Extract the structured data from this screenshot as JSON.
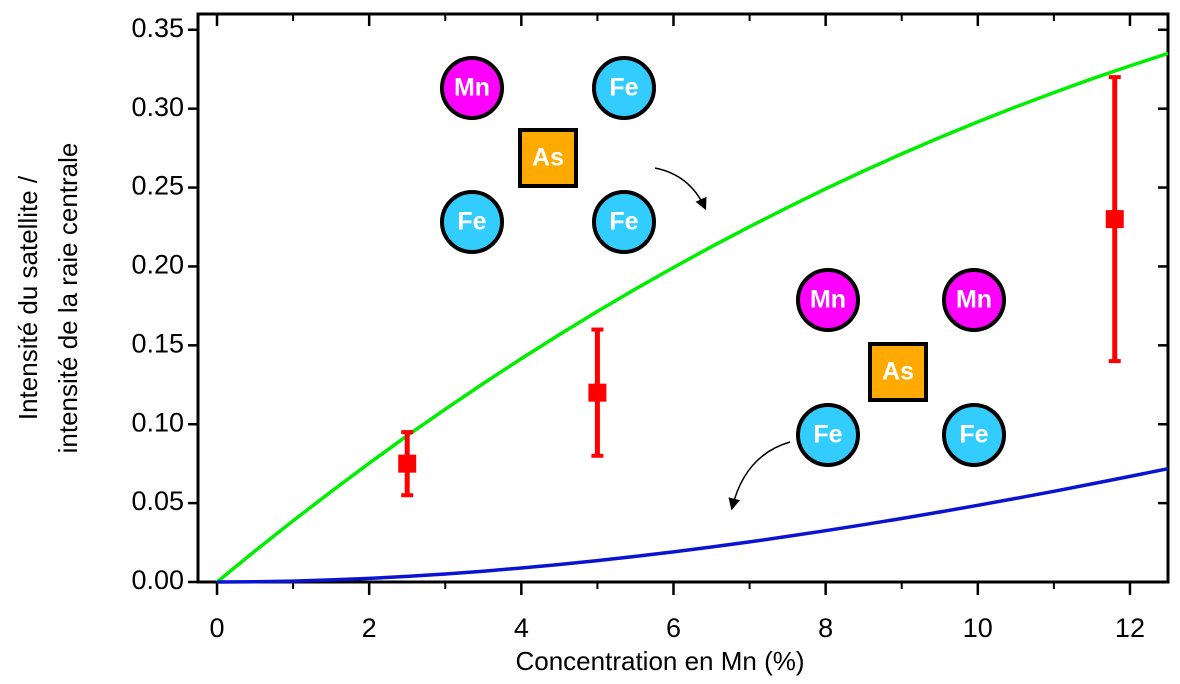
{
  "chart_data": {
    "type": "line",
    "xlabel": "Concentration en Mn (%)",
    "ylabel": [
      "Intensité du satellite /",
      "intensité de la raie centrale"
    ],
    "xlim": [
      -0.25,
      12.5
    ],
    "ylim": [
      0,
      0.36
    ],
    "xticks": [
      0,
      2,
      4,
      6,
      8,
      10,
      12
    ],
    "xminor_ticks": [
      1,
      3,
      5,
      7,
      9,
      11
    ],
    "yticks": [
      {
        "value": 0,
        "label": "0.00"
      },
      0.05,
      {
        "value": 0.1,
        "label": "0.10"
      },
      0.15,
      {
        "value": 0.2,
        "label": "0.20"
      },
      0.25,
      {
        "value": 0.3,
        "label": "0.30"
      },
      0.35
    ],
    "series": [
      {
        "color": "#00ee00",
        "x": [
          0,
          0.5,
          1,
          1.5,
          2,
          2.5,
          3,
          3.5,
          4,
          4.5,
          5,
          5.5,
          6,
          6.5,
          7,
          7.5,
          8,
          8.5,
          9,
          9.5,
          10,
          10.5,
          11,
          11.5,
          12,
          12.5
        ],
        "values": [
          0,
          0.0197,
          0.0388,
          0.0573,
          0.0753,
          0.0927,
          0.1095,
          0.1258,
          0.1416,
          0.1568,
          0.1715,
          0.1857,
          0.1993,
          0.2125,
          0.2252,
          0.2374,
          0.2492,
          0.2605,
          0.2713,
          0.2817,
          0.2916,
          0.3011,
          0.3102,
          0.3189,
          0.3271,
          0.335
        ]
      },
      {
        "color": "#0a14d0",
        "x": [
          0,
          0.5,
          1,
          1.5,
          2,
          2.5,
          3,
          3.5,
          4,
          4.5,
          5,
          5.5,
          6,
          6.5,
          7,
          7.5,
          8,
          8.5,
          9,
          9.5,
          10,
          10.5,
          11,
          11.5,
          12,
          12.5
        ],
        "values": [
          0,
          0.00015,
          0.00059,
          0.00131,
          0.0023,
          0.00356,
          0.00508,
          0.00684,
          0.00885,
          0.01108,
          0.01354,
          0.01621,
          0.01909,
          0.02216,
          0.02543,
          0.02888,
          0.0325,
          0.03629,
          0.04025,
          0.04435,
          0.0486,
          0.05299,
          0.05751,
          0.06215,
          0.06691,
          0.07178
        ]
      },
      {
        "type": "errorbar",
        "color": "#ff0000",
        "x": [
          2.5,
          5,
          11.8
        ],
        "values": [
          0.075,
          0.12,
          0.23
        ],
        "errors": [
          0.02,
          0.04,
          0.09
        ]
      }
    ],
    "insets": [
      {
        "atoms": [
          "Mn",
          "Fe",
          "As",
          "Fe",
          "Fe"
        ]
      },
      {
        "atoms": [
          "Mn",
          "Mn",
          "As",
          "Fe",
          "Fe"
        ]
      }
    ]
  }
}
